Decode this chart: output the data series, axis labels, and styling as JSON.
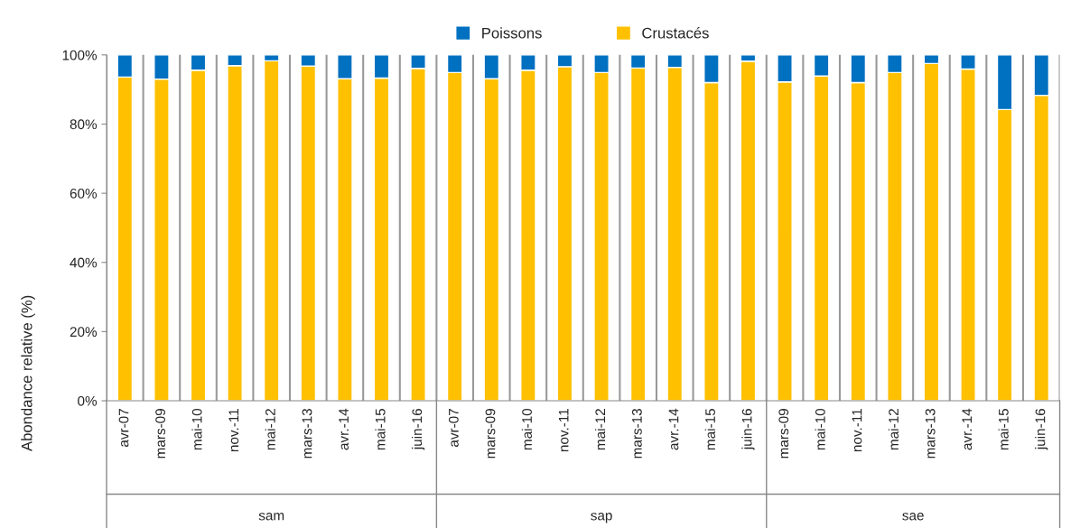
{
  "chart_data": {
    "type": "bar",
    "stacked": true,
    "ylabel": "Abondance relative (%)",
    "categories": [
      "avr-07",
      "mars-09",
      "mai-10",
      "nov.-11",
      "mai-12",
      "mars-13",
      "avr.-14",
      "mai-15",
      "juin-16",
      "avr-07",
      "mars-09",
      "mai-10",
      "nov.-11",
      "mai-12",
      "mars-13",
      "avr.-14",
      "mai-15",
      "juin-16",
      "mars-09",
      "mai-10",
      "nov.-11",
      "mai-12",
      "mars-13",
      "avr.-14",
      "mai-15",
      "juin-16"
    ],
    "annotations": [
      "sam",
      "sap",
      "sae"
    ],
    "series": [
      {
        "name": "Crustacés",
        "color": "#ffc000",
        "values": [
          93.6,
          93.0,
          95.6,
          96.9,
          98.3,
          96.8,
          93.1,
          93.3,
          96.1,
          94.9,
          93.1,
          95.6,
          96.6,
          94.9,
          96.2,
          96.4,
          92.0,
          98.2,
          92.2,
          93.9,
          92.0,
          94.9,
          97.5,
          95.9,
          84.2,
          88.3
        ]
      },
      {
        "name": "Poissons",
        "color": "#0070c0",
        "values": [
          6.4,
          7.0,
          4.4,
          3.1,
          1.7,
          3.2,
          6.9,
          6.7,
          3.9,
          5.1,
          6.9,
          4.4,
          3.4,
          5.1,
          3.8,
          3.6,
          8.0,
          1.8,
          7.8,
          6.1,
          8.0,
          5.1,
          2.5,
          4.1,
          15.8,
          11.7
        ]
      }
    ],
    "ylim": [
      0,
      100
    ],
    "yticks": [
      {
        "value": 0,
        "label": "0%"
      },
      {
        "value": 20,
        "label": "20%"
      },
      {
        "value": 40,
        "label": "40%"
      },
      {
        "value": 60,
        "label": "60%"
      },
      {
        "value": 80,
        "label": "80%"
      },
      {
        "value": 100,
        "label": "100%"
      }
    ],
    "grid": "x",
    "legend": "top"
  }
}
